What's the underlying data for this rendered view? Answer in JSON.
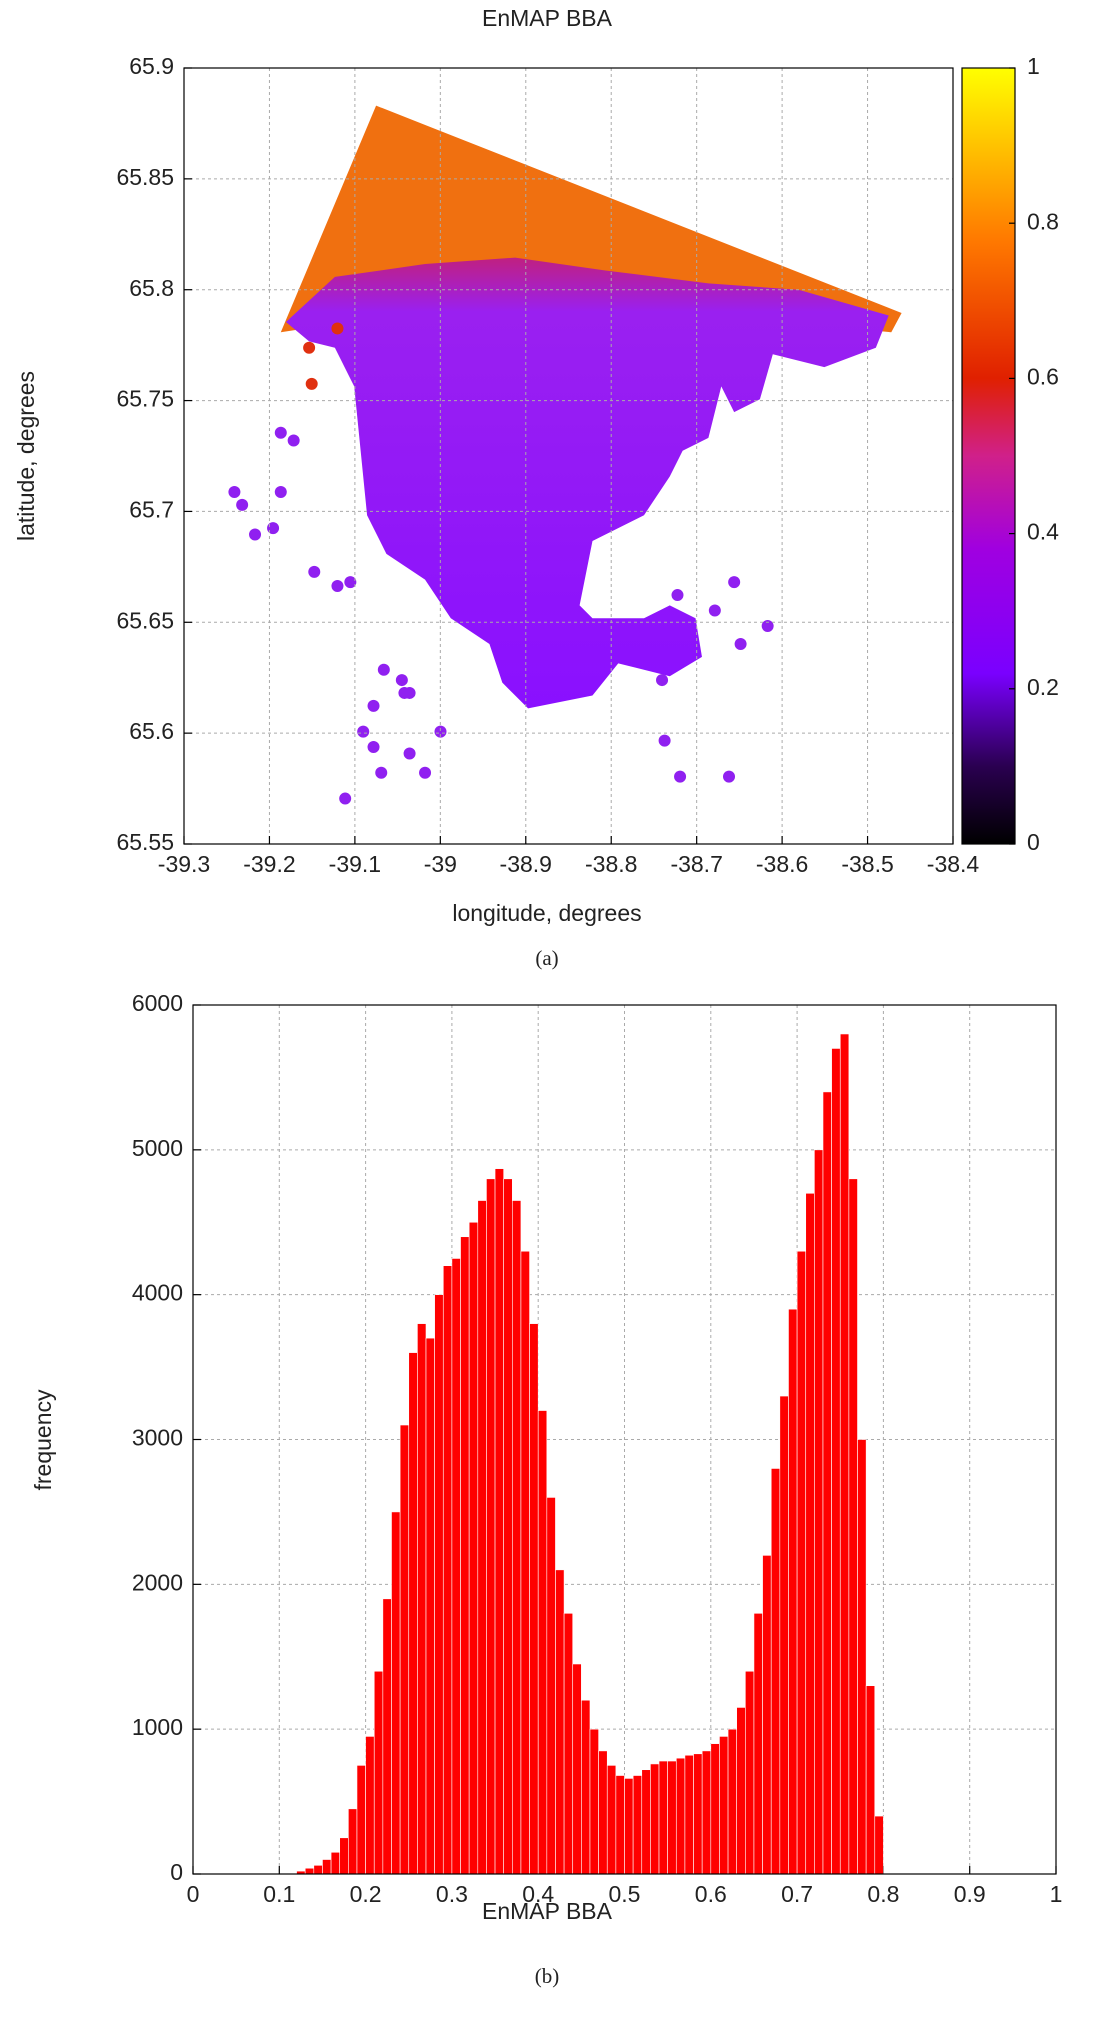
{
  "chart_data": [
    {
      "type": "map",
      "title": "EnMAP BBA",
      "xlabel": "longitude, degrees",
      "ylabel": "latitude, degrees",
      "caption": "(a)",
      "xlim": [
        -39.3,
        -38.4
      ],
      "xticks": [
        -39.3,
        -39.2,
        -39.1,
        -39,
        -38.9,
        -38.8,
        -38.7,
        -38.6,
        -38.5,
        -38.4
      ],
      "ylim": [
        65.55,
        65.9
      ],
      "yticks": [
        65.55,
        65.6,
        65.65,
        65.7,
        65.75,
        65.8,
        65.85,
        65.9
      ],
      "colorbar_lim": [
        0,
        1
      ],
      "colorbar_ticks": [
        0,
        0.2,
        0.4,
        0.6,
        0.8,
        1
      ],
      "grid": true
    },
    {
      "type": "histogram",
      "xlabel": "EnMAP BBA",
      "ylabel": "frequency",
      "caption": "(b)",
      "color": "#ff0000",
      "bins": [
        0.1,
        0.11,
        0.12,
        0.13,
        0.14,
        0.15,
        0.16,
        0.17,
        0.18,
        0.19,
        0.2,
        0.21,
        0.22,
        0.23,
        0.24,
        0.25,
        0.26,
        0.27,
        0.28,
        0.29,
        0.3,
        0.31,
        0.32,
        0.33,
        0.34,
        0.35,
        0.36,
        0.37,
        0.38,
        0.39,
        0.4,
        0.41,
        0.42,
        0.43,
        0.44,
        0.45,
        0.46,
        0.47,
        0.48,
        0.49,
        0.5,
        0.51,
        0.52,
        0.53,
        0.54,
        0.55,
        0.56,
        0.57,
        0.58,
        0.59,
        0.6,
        0.61,
        0.62,
        0.63,
        0.64,
        0.65,
        0.66,
        0.67,
        0.68,
        0.69,
        0.7,
        0.71,
        0.72,
        0.73,
        0.74,
        0.75,
        0.76,
        0.77,
        0.78,
        0.79,
        0.8
      ],
      "values": [
        0,
        5,
        20,
        40,
        60,
        100,
        150,
        250,
        450,
        750,
        950,
        1400,
        1900,
        2500,
        3100,
        3600,
        3800,
        3700,
        4000,
        4200,
        4250,
        4400,
        4500,
        4650,
        4800,
        4870,
        4800,
        4650,
        4300,
        3800,
        3200,
        2600,
        2100,
        1800,
        1450,
        1200,
        1000,
        850,
        750,
        680,
        660,
        680,
        720,
        760,
        780,
        780,
        800,
        820,
        830,
        850,
        900,
        950,
        1000,
        1150,
        1400,
        1800,
        2200,
        2800,
        3300,
        3900,
        4300,
        4700,
        5000,
        5400,
        5700,
        5800,
        4800,
        3000,
        1300,
        400
      ],
      "xlim": [
        0,
        1
      ],
      "xticks": [
        0,
        0.1,
        0.2,
        0.3,
        0.4,
        0.5,
        0.6,
        0.7,
        0.8,
        0.9,
        1
      ],
      "ylim": [
        0,
        6000
      ],
      "yticks": [
        0,
        1000,
        2000,
        3000,
        4000,
        5000,
        6000
      ],
      "grid": true
    }
  ]
}
